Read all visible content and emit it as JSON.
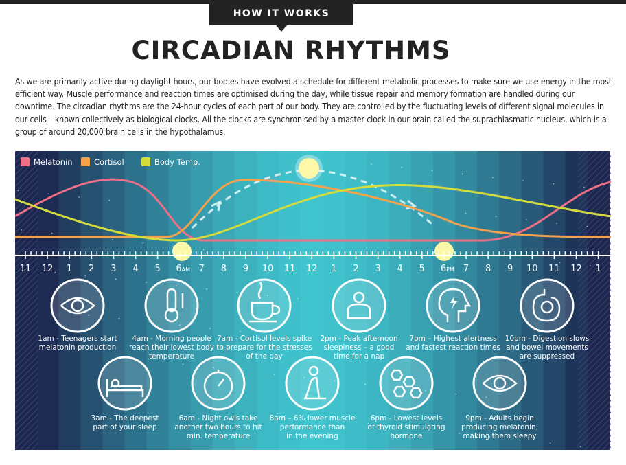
{
  "header": {
    "tag": "HOW IT WORKS",
    "title": "CIRCADIAN RHYTHMS"
  },
  "intro": "As we are primarily active during daylight hours, our bodies have evolved a schedule for different metabolic processes to make sure we use energy in the most efficient way. Muscle performance and reaction times are optimised during the day, while tissue repair and memory formation are handled during our downtime. The circadian rhythms are the 24-hour cycles of each part of our body. They are controlled by the fluctuating levels of different signal molecules in our cells – known collectively as biological clocks. All the clocks are synchronised by a master clock in our brain called the suprachiasmatic nucleus, which is a group of around 20,000 brain cells in the hypothalamus.",
  "legend": [
    {
      "name": "Melatonin",
      "color": "#ee6f86"
    },
    {
      "name": "Cortisol",
      "color": "#f4a24c"
    },
    {
      "name": "Body Temp.",
      "color": "#d3dc3c"
    }
  ],
  "hours": [
    "11",
    "12",
    "1",
    "2",
    "3",
    "4",
    "5",
    {
      "label": "6",
      "suffix": "AM"
    },
    "7",
    "8",
    "9",
    "10",
    "11",
    "12",
    "1",
    "2",
    "3",
    "4",
    "5",
    {
      "label": "6",
      "suffix": "PM"
    },
    "7",
    "8",
    "9",
    "10",
    "11",
    "12",
    "1"
  ],
  "events": {
    "top": [
      [
        "1am - Teenagers start",
        "melatonin production"
      ],
      [
        "4am - Morning people",
        "reach their lowest body",
        "temperature"
      ],
      [
        "7am - Cortisol levels spike",
        "to prepare for the stresses",
        "of the day"
      ],
      [
        "2pm - Peak afternoon",
        "sleepiness – a good",
        "time for a nap"
      ],
      [
        "7pm – Highest alertness",
        "and fastest reaction times"
      ],
      [
        "10pm - Digestion slows",
        "and bowel movements",
        "are suppressed"
      ]
    ],
    "bottom": [
      [
        "3am - The deepest",
        "part of your sleep"
      ],
      [
        "6am - Night owls take",
        "another two hours to hit",
        "min. temperature"
      ],
      [
        "8am – 6% lower muscle",
        "performance than",
        "in the evening"
      ],
      [
        "6pm - Lowest levels",
        "of thyroid stimulating",
        "hormone"
      ],
      [
        "9pm - Adults begin",
        "producing melatonin,",
        "making them sleepy"
      ]
    ]
  }
}
